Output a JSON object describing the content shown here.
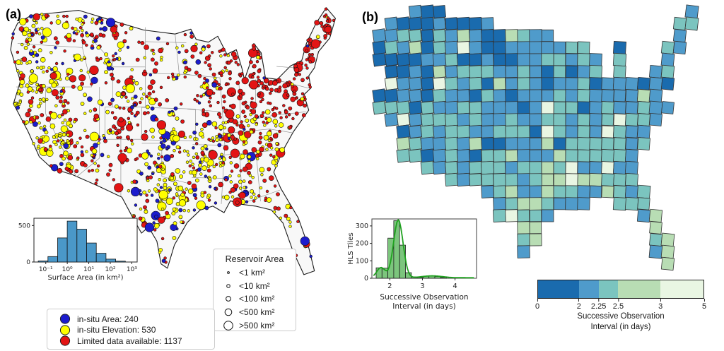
{
  "figure": {
    "panel_a_label": "(a)",
    "panel_b_label": "(b)",
    "background": "#ffffff"
  },
  "panel_a": {
    "map": {
      "fill": "#f8f8f8",
      "outline_color": "#1a1a1a",
      "state_line_color": "#8c8c8c",
      "dot_colors": {
        "red": "#e31414",
        "yellow": "#ffff00",
        "blue": "#1c1ccd"
      },
      "dot_edge_color": "#111111"
    },
    "size_legend": {
      "title": "Reservoir Area",
      "items": [
        "<1 km²",
        "<10 km²",
        "<100 km²",
        "<500 km²",
        ">500 km²"
      ]
    },
    "color_legend": {
      "items": [
        {
          "label": "in-situ Area: 240",
          "color": "#1c1ccd"
        },
        {
          "label": "in-situ Elevation: 530",
          "color": "#ffff00"
        },
        {
          "label": "Limited data available: 1137",
          "color": "#e31414"
        }
      ]
    }
  },
  "panel_b": {
    "histogram": {
      "ylabel": "HLS Tiles",
      "xlabel_line1": "Successive Observation",
      "xlabel_line2": "Interval (in days)"
    },
    "colorbar": {
      "ticks": [
        "0",
        "2",
        "2.25",
        "2.5",
        "3",
        "5"
      ],
      "tick_positions_pct": [
        0,
        24.9,
        36.7,
        48.5,
        73.8,
        100
      ],
      "segment_colors": [
        "#1a6bae",
        "#4f9bcb",
        "#7bc4bf",
        "#b8ddb4",
        "#e9f6e3"
      ],
      "segment_widths_pct": [
        24.9,
        11.8,
        11.8,
        25.3,
        26.2
      ],
      "label_line1": "Successive Observation",
      "label_line2": "Interval (in days)"
    }
  },
  "chart_data": [
    {
      "type": "scatter",
      "subtype": "map-bubble",
      "title": "CONUS reservoirs by data availability (panel a)",
      "series": [
        {
          "name": "in-situ Area",
          "count": 240,
          "color": "#1c1ccd"
        },
        {
          "name": "in-situ Elevation",
          "count": 530,
          "color": "#ffff00"
        },
        {
          "name": "Limited data available",
          "count": 1137,
          "color": "#e31414"
        }
      ],
      "size_classes": [
        "<1 km²",
        "<10 km²",
        "<100 km²",
        "<500 km²",
        ">500 km²"
      ],
      "note": "Bubble map over US state outlines; dense red clusters in the Northeast and upper Midwest, yellow clusters in California and the southern Great Plains, blue scattered in the Mountain West and Texas."
    },
    {
      "type": "bar",
      "title": "Surface area histogram (panel a inset)",
      "xlabel": "Surface Area (in km²)",
      "ylabel": "",
      "x_scale": "log10",
      "bin_edges_log10": [
        -1.35,
        -0.9,
        -0.45,
        0,
        0.45,
        0.9,
        1.35,
        1.8,
        2.25,
        2.7
      ],
      "values": [
        15,
        75,
        330,
        560,
        450,
        260,
        120,
        40,
        12
      ],
      "xticks": [
        {
          "log": -1,
          "label": "10⁻¹"
        },
        {
          "log": 0,
          "label": "10⁰"
        },
        {
          "log": 1,
          "label": "10¹"
        },
        {
          "log": 2,
          "label": "10²"
        },
        {
          "log": 3,
          "label": "10³"
        }
      ],
      "yticks": [
        0,
        500
      ],
      "ylim": [
        0,
        600
      ],
      "bar_color": "#4a98c9"
    },
    {
      "type": "heatmap",
      "subtype": "tile-map",
      "title": "HLS tile successive observation interval (panel b)",
      "classes": [
        {
          "range": "0–2 days",
          "color": "#1a6bae"
        },
        {
          "range": "2–2.25 days",
          "color": "#4f9bcb"
        },
        {
          "range": "2.25–2.5 days",
          "color": "#7bc4bf"
        },
        {
          "range": "2.5–3 days",
          "color": "#b8ddb4"
        },
        {
          "range": "3–5 days",
          "color": "#e9f6e3"
        }
      ],
      "note": "Grid of HLS tiles covering CONUS; shorter intervals (blues) dominate the north and west, longer intervals (light greens) scattered through the south and east."
    },
    {
      "type": "bar",
      "subtype": "histogram+kde",
      "title": "Successive observation interval histogram (panel b inset)",
      "xlabel": "Successive Observation Interval (in days)",
      "ylabel": "HLS Tiles",
      "bin_edges": [
        1.58,
        1.76,
        1.94,
        2.12,
        2.3,
        2.48,
        2.66,
        2.84,
        3.02,
        3.2,
        3.38,
        3.56,
        3.74
      ],
      "values": [
        60,
        58,
        230,
        330,
        190,
        32,
        8,
        5,
        12,
        12,
        10,
        5
      ],
      "xticks": [
        2,
        3,
        4
      ],
      "yticks": [
        0,
        100,
        200,
        300
      ],
      "xlim": [
        1.45,
        4.66
      ],
      "ylim": [
        0,
        340
      ],
      "bar_color": "#7cc57d",
      "kde_color": "#1fa11f"
    }
  ]
}
